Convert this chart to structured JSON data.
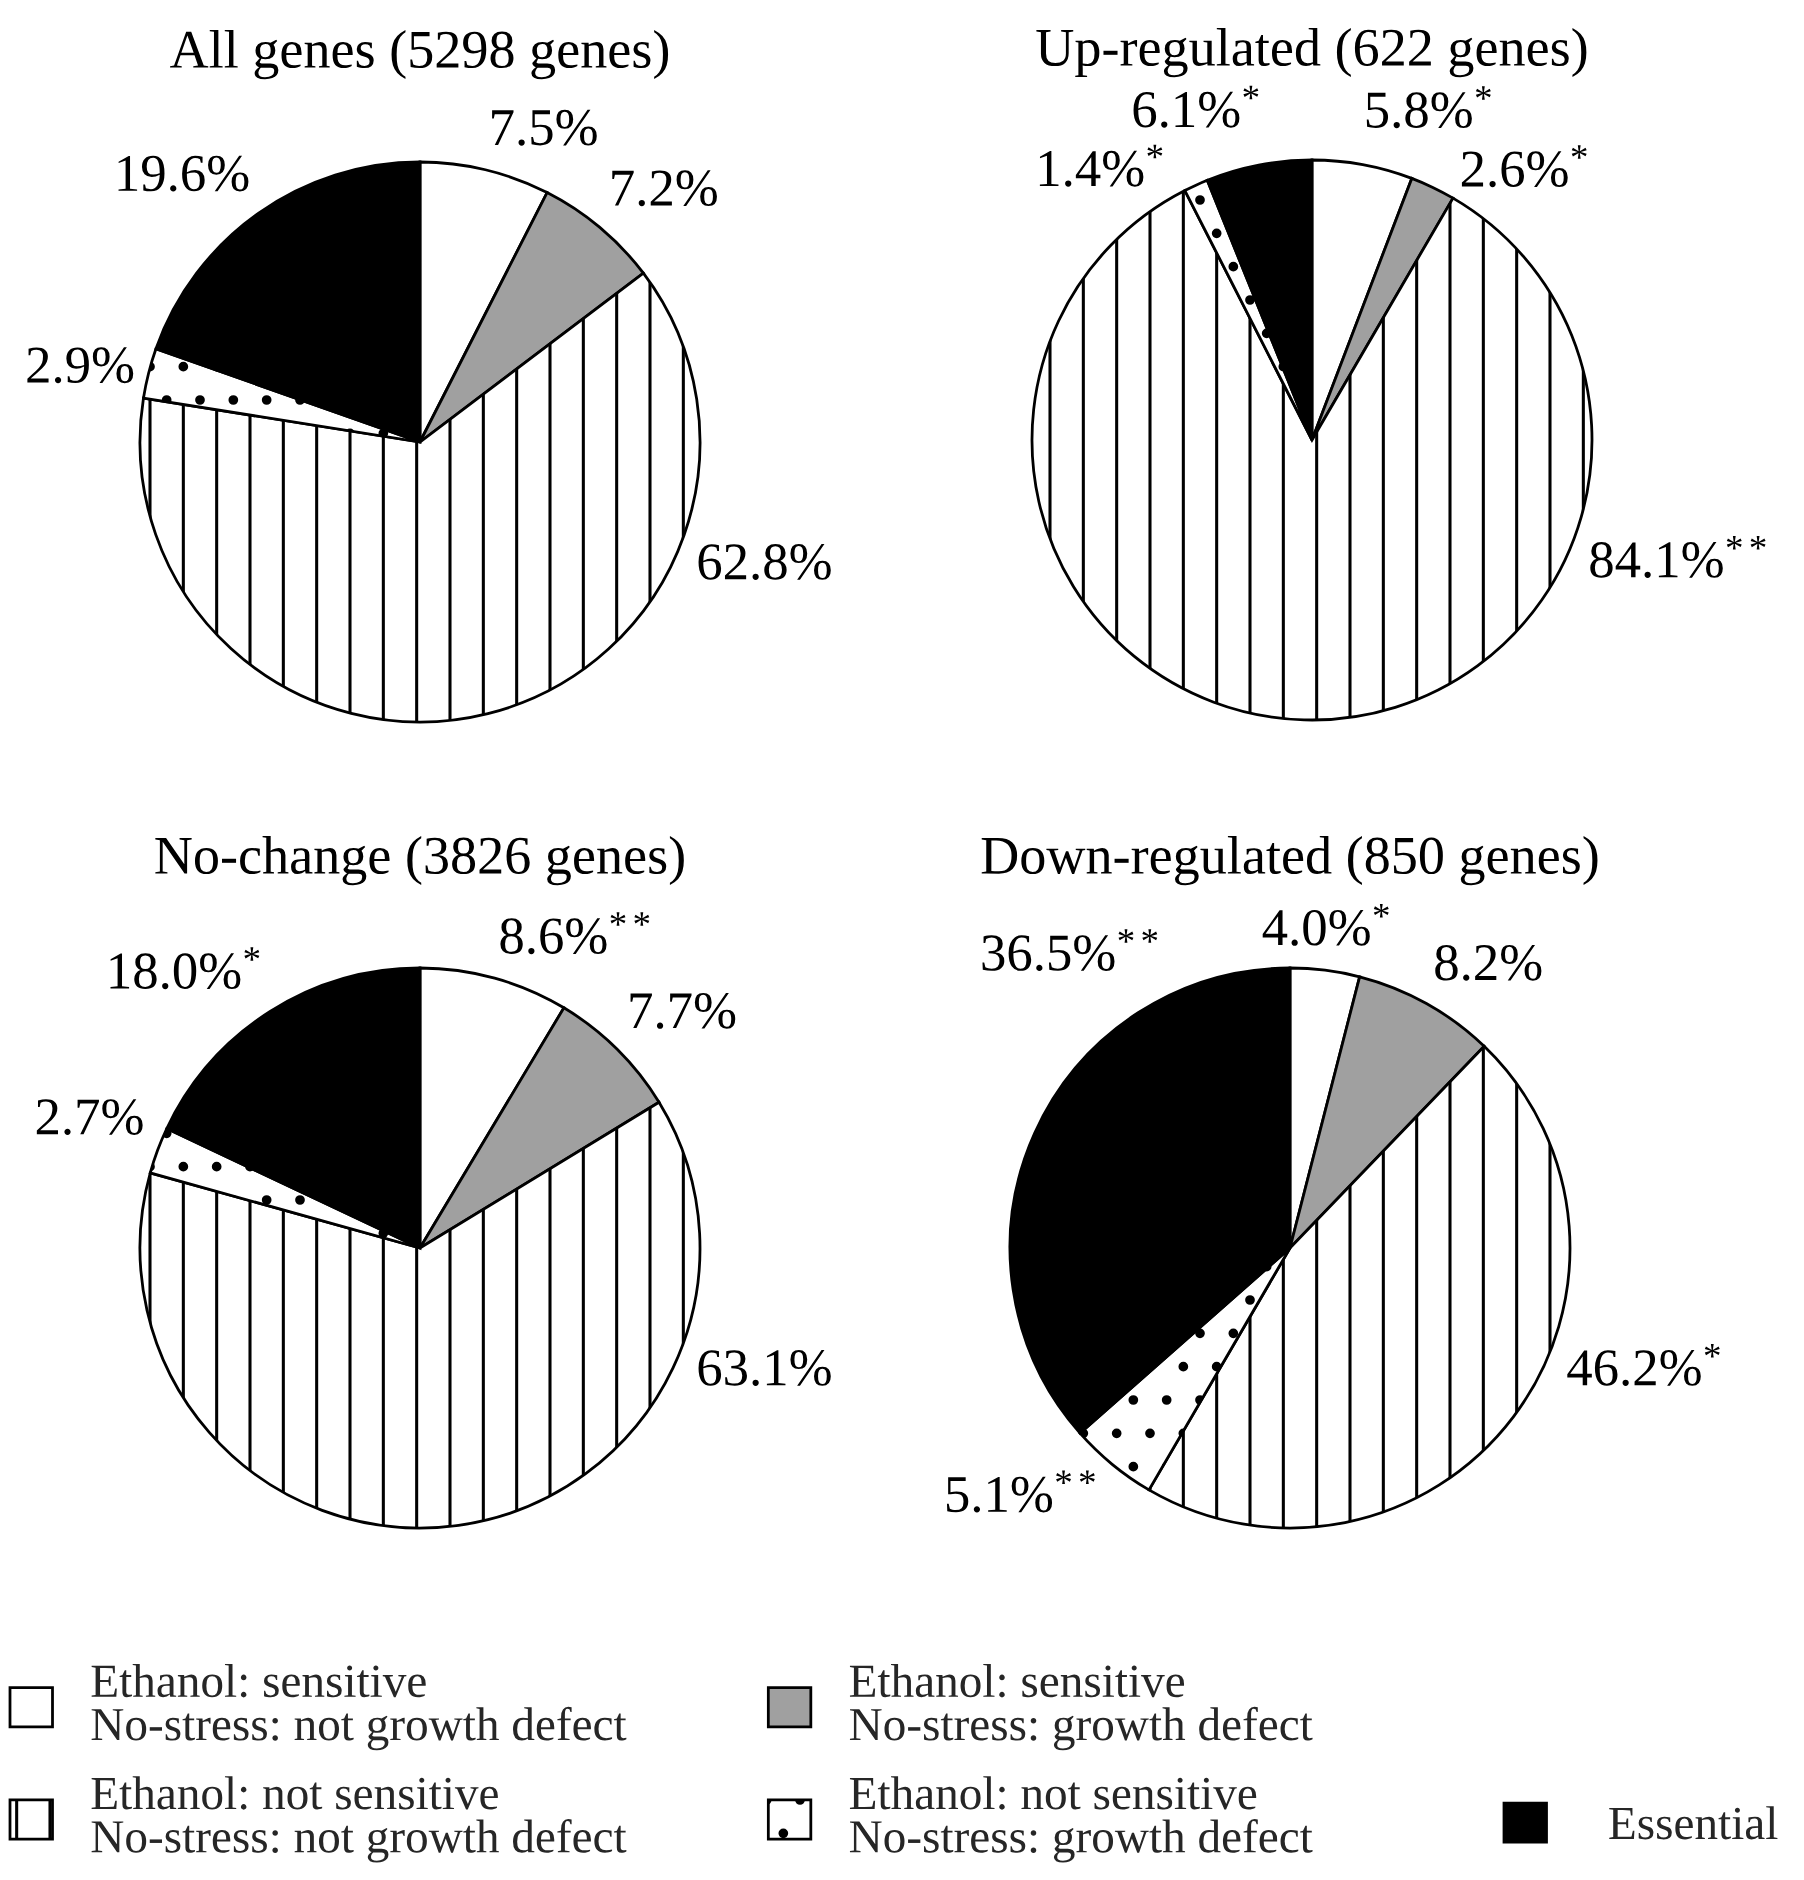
{
  "chart_data": [
    {
      "type": "pie",
      "title": "All genes (5298 genes)",
      "categories": [
        "Ethanol: sensitive\nNo-stress: not growth defect",
        "Ethanol: sensitive\nNo-stress: growth defect",
        "Ethanol: not sensitive\nNo-stress: not growth defect",
        "Ethanol: not sensitive\nNo-stress: growth defect",
        "Essential"
      ],
      "values": [
        7.5,
        7.2,
        62.8,
        2.9,
        19.6
      ],
      "colors": [
        "#ffffff",
        "#a0a0a0",
        "#ffffff",
        "#ffffff",
        "#000000"
      ],
      "value_labels": [
        "7.5%",
        "7.2%",
        "62.8%",
        "2.9%",
        "19.6%"
      ],
      "legend": "bottom"
    },
    {
      "type": "pie",
      "title": "Up-regulated (622 genes)",
      "categories": [
        null,
        null,
        null,
        null,
        null
      ],
      "values": [
        5.8,
        2.6,
        84.1,
        1.4,
        6.1
      ],
      "colors": [
        "#ffffff",
        "#a0a0a0",
        "#ffffff",
        "#ffffff",
        "#000000"
      ],
      "value_labels": [
        "5.8%$^{*}$",
        "2.6%$^{*}$",
        "84.1%$^{**}$",
        "1.4%$^{*}$",
        "6.1%$^{*}$"
      ]
    },
    {
      "type": "pie",
      "title": "No-change (3826 genes)",
      "categories": [
        null,
        null,
        null,
        null,
        null
      ],
      "values": [
        8.6,
        7.7,
        63.1,
        2.7,
        18.0
      ],
      "colors": [
        "#ffffff",
        "#a0a0a0",
        "#ffffff",
        "#ffffff",
        "#000000"
      ],
      "value_labels": [
        "8.6%$^{**}$",
        "7.7%",
        "63.1%",
        "2.7%",
        "18.0%$^{*}$"
      ]
    },
    {
      "type": "pie",
      "title": "Down-regulated (850 genes)",
      "categories": [
        null,
        null,
        null,
        null,
        null
      ],
      "values": [
        4.0,
        8.2,
        46.2,
        5.1,
        36.5
      ],
      "colors": [
        "#ffffff",
        "#a0a0a0",
        "#ffffff",
        "#ffffff",
        "#000000"
      ],
      "value_labels": [
        "4.0%$^{*}$",
        "8.2%",
        "46.2%$^{*}$",
        "5.1%$^{**}$",
        "36.5%$^{**}$"
      ]
    }
  ]
}
